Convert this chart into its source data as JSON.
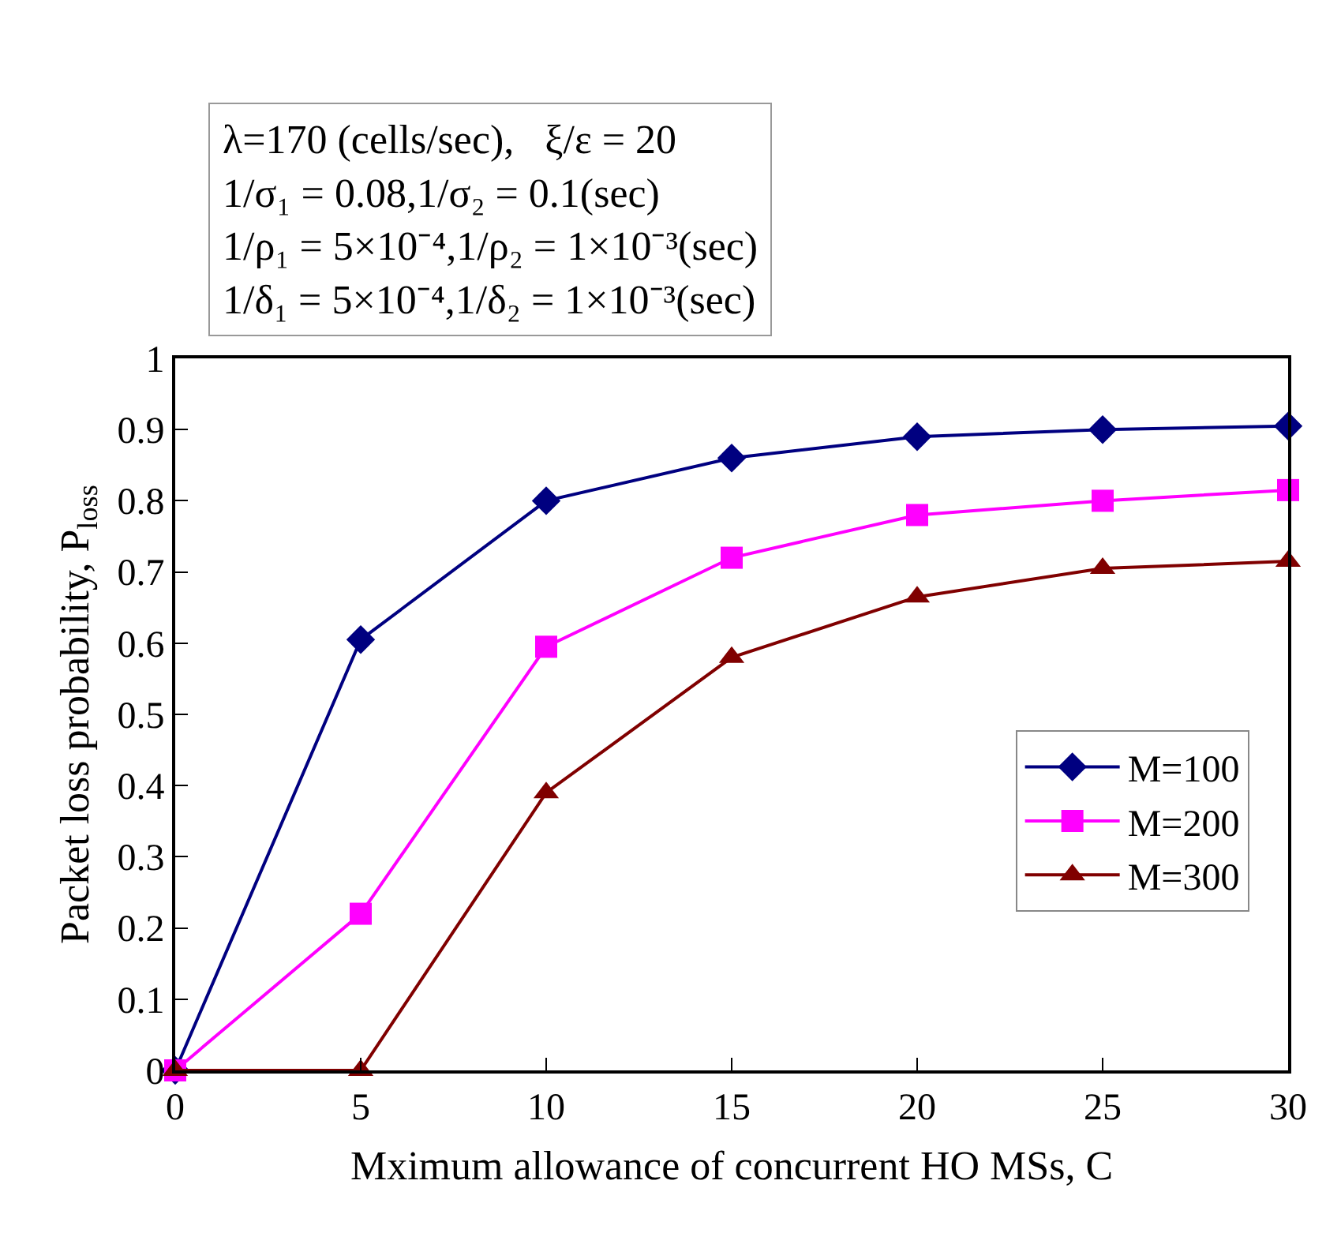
{
  "chart_data": {
    "type": "line",
    "xlabel": "Mximum allowance of concurrent HO MSs, C",
    "ylabel": "Packet loss probability, P$_{loss}$",
    "annotations": [
      "λ=170 (cells/sec),   ξ/ε = 20",
      "1/σ₁ = 0.08,1/σ₂ = 0.1(sec)",
      "1/ρ₁ = 5×10⁻⁴,1/ρ₂ = 1×10⁻³(sec)",
      "1/δ₁ = 5×10⁻⁴,1/δ₂ = 1×10⁻³(sec)"
    ],
    "x": [
      0,
      5,
      10,
      15,
      20,
      25,
      30
    ],
    "series": [
      {
        "name": "M=100",
        "color": "#000080",
        "marker": "diamond",
        "values": [
          0,
          0.605,
          0.8,
          0.86,
          0.89,
          0.9,
          0.905
        ]
      },
      {
        "name": "M=200",
        "color": "#ff00ff",
        "marker": "square",
        "values": [
          0,
          0.22,
          0.595,
          0.72,
          0.78,
          0.8,
          0.815
        ]
      },
      {
        "name": "M=300",
        "color": "#800000",
        "marker": "triangle",
        "values": [
          0,
          0,
          0.39,
          0.58,
          0.665,
          0.705,
          0.715
        ]
      }
    ],
    "xlim": [
      0,
      30
    ],
    "xticks": [
      0,
      5,
      10,
      15,
      20,
      25,
      30
    ],
    "ylim": [
      0,
      1
    ],
    "yticks": [
      0,
      0.1,
      0.2,
      0.3,
      0.4,
      0.5,
      0.6,
      0.7,
      0.8,
      0.9,
      1
    ],
    "legend": "right"
  }
}
